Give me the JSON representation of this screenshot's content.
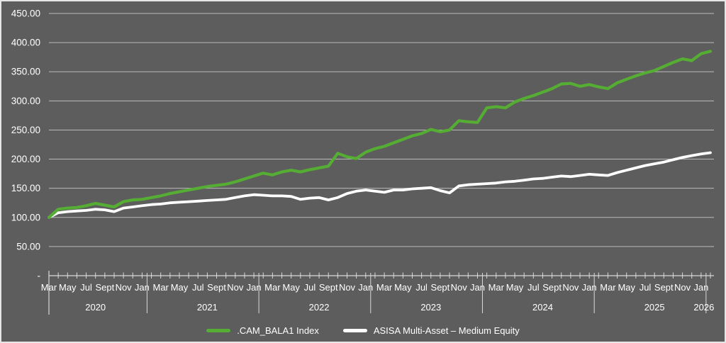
{
  "chart": {
    "background_color": "#5d5d5d",
    "gridline_color": "#cccccc",
    "axis_line_color": "#d9d9d9",
    "text_color": "#ffffff"
  },
  "chart_data": {
    "type": "line",
    "title": "",
    "x_axis": {
      "unit": "month",
      "start": "Mar 2020",
      "end": "Feb 2026",
      "month_label_cycle": [
        "Mar",
        "May",
        "Jul",
        "Sept",
        "Nov",
        "Jan"
      ],
      "year_labels": [
        "2020",
        "2021",
        "2022",
        "2023",
        "2024",
        "2025"
      ],
      "end_year_label": "2026"
    },
    "y_axis": {
      "tick_labels": [
        "450.00",
        "400.00",
        "350.00",
        "300.00",
        "250.00",
        "200.00",
        "150.00",
        "100.00",
        "50.00",
        "-"
      ],
      "min": 0,
      "max": 450,
      "step": 50
    },
    "series": [
      {
        "name": "ASISA Multi-Asset – Medium Equity",
        "color": "#ffffff",
        "values": [
          100,
          108,
          110,
          111,
          112,
          114,
          113,
          110,
          116,
          118,
          120,
          122,
          123,
          125,
          126,
          127,
          128,
          129,
          130,
          131,
          134,
          137,
          139,
          138,
          137,
          137,
          136,
          131,
          133,
          134,
          130,
          134,
          141,
          145,
          147,
          145,
          143,
          147,
          147,
          149,
          150,
          151,
          146,
          142,
          154,
          156,
          157,
          158,
          159,
          161,
          162,
          164,
          166,
          167,
          169,
          171,
          170,
          172,
          174,
          173,
          172,
          177,
          181,
          185,
          189,
          192,
          195,
          199,
          203,
          206,
          209,
          211
        ]
      },
      {
        "name": ".CAM_BALA1 Index",
        "color": "#55ad33",
        "values": [
          100,
          114,
          116,
          117,
          120,
          124,
          121,
          118,
          127,
          130,
          131,
          134,
          137,
          141,
          144,
          147,
          150,
          153,
          155,
          157,
          161,
          166,
          171,
          176,
          173,
          178,
          181,
          178,
          182,
          185,
          188,
          210,
          204,
          201,
          212,
          218,
          222,
          228,
          234,
          240,
          244,
          251,
          247,
          250,
          266,
          264,
          263,
          288,
          290,
          288,
          298,
          304,
          309,
          315,
          321,
          329,
          330,
          325,
          328,
          324,
          321,
          331,
          337,
          343,
          348,
          352,
          359,
          366,
          372,
          369,
          381,
          385
        ]
      }
    ],
    "legend_position": "bottom",
    "grid": "horizontal"
  }
}
